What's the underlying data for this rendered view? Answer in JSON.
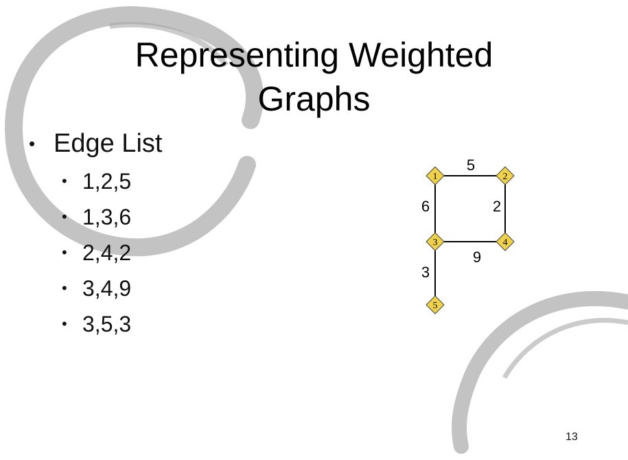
{
  "slide": {
    "title_line1": "Representing Weighted",
    "title_line2": "Graphs",
    "bullet": "Edge List",
    "items": [
      "1,2,5",
      "1,3,6",
      "2,4,2",
      "3,4,9",
      "3,5,3"
    ],
    "page_number": "13"
  },
  "graph": {
    "nodes": [
      "1",
      "2",
      "3",
      "4",
      "5"
    ],
    "edges": [
      {
        "from": "1",
        "to": "2",
        "weight": "5"
      },
      {
        "from": "1",
        "to": "3",
        "weight": "6"
      },
      {
        "from": "2",
        "to": "4",
        "weight": "2"
      },
      {
        "from": "3",
        "to": "4",
        "weight": "9"
      },
      {
        "from": "3",
        "to": "5",
        "weight": "3"
      }
    ],
    "node_color": "#f0d24a"
  }
}
